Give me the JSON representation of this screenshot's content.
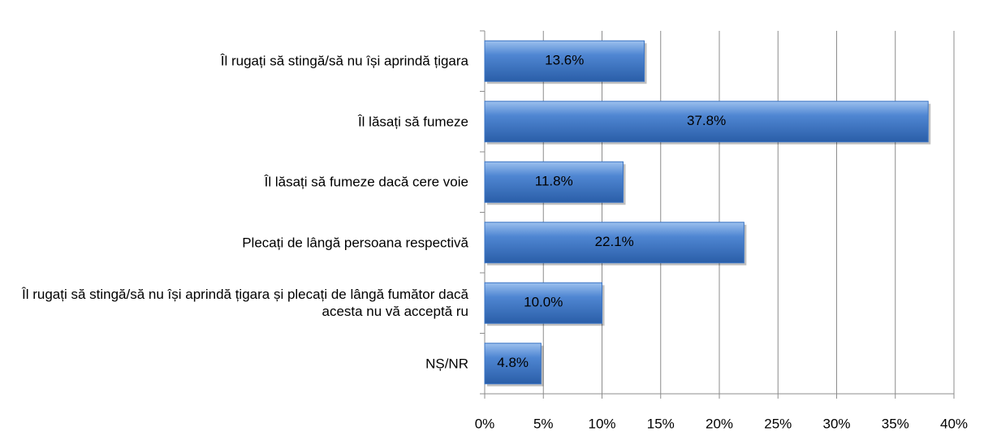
{
  "chart_data": {
    "type": "bar",
    "orientation": "horizontal",
    "categories": [
      "Îl rugați să stingă/să nu își aprindă țigara",
      "Îl lăsați să fumeze",
      "Îl lăsați să fumeze dacă cere voie",
      "Plecați de lângă persoana respectivă",
      "Îl rugați să stingă/să nu își aprindă țigara și plecați de lângă fumător dacă acesta nu vă acceptă ru",
      "NȘ/NR"
    ],
    "values": [
      13.6,
      37.8,
      11.8,
      22.1,
      10.0,
      4.8
    ],
    "value_labels": [
      "13.6%",
      "37.8%",
      "11.8%",
      "22.1%",
      "10.0%",
      "4.8%"
    ],
    "color": "#3a74c4",
    "xlim": [
      0,
      40
    ],
    "xticks": [
      {
        "value": 0,
        "label": "0%"
      },
      {
        "value": 5,
        "label": "5%"
      },
      {
        "value": 10,
        "label": "10%"
      },
      {
        "value": 15,
        "label": "15%"
      },
      {
        "value": 20,
        "label": "20%"
      },
      {
        "value": 25,
        "label": "25%"
      },
      {
        "value": 30,
        "label": "30%"
      },
      {
        "value": 35,
        "label": "35%"
      },
      {
        "value": 40,
        "label": "40%"
      }
    ],
    "grid": true
  }
}
